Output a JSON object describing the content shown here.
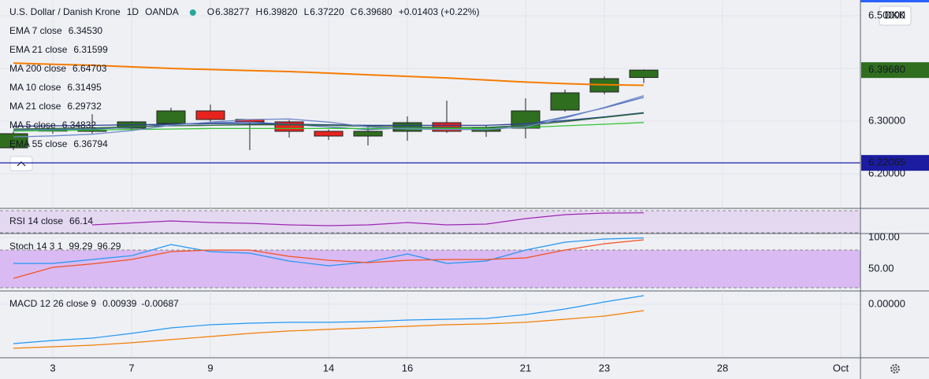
{
  "header": {
    "title": "U.S. Dollar / Danish Krone",
    "interval": "1D",
    "source": "OANDA",
    "ohlc": [
      {
        "key": "O",
        "label": "6.38277"
      },
      {
        "key": "H",
        "label": "6.39820"
      },
      {
        "key": "L",
        "label": "6.37220"
      },
      {
        "key": "C",
        "label": "6.39680"
      }
    ],
    "change": "+0.01403 (+0.22%)",
    "currency": "DKK"
  },
  "chart_data": [
    {
      "type": "candlestick",
      "xlim": [
        -0.34,
        21.5
      ],
      "xticks": [
        {
          "value": 1,
          "label": "3"
        },
        {
          "value": 3,
          "label": "7"
        },
        {
          "value": 5,
          "label": "9"
        },
        {
          "value": 8,
          "label": "14"
        },
        {
          "value": 10,
          "label": "16"
        },
        {
          "value": 13,
          "label": "21"
        },
        {
          "value": 15,
          "label": "23"
        },
        {
          "value": 18,
          "label": "28"
        },
        {
          "value": 21,
          "label": "Oct"
        }
      ],
      "ylim": [
        6.1343,
        6.5299
      ],
      "yticks": [
        {
          "value": 6.2,
          "label": "6.20000"
        },
        {
          "value": 6.3,
          "label": "6.30000"
        },
        {
          "value": 6.4,
          "label": "6.40000"
        },
        {
          "value": 6.5,
          "label": "6.50000"
        }
      ],
      "open": [
        6.2493,
        6.281,
        6.2806,
        6.2866,
        6.2955,
        6.3194,
        6.303,
        6.2985,
        6.2806,
        6.2716,
        6.2806,
        6.297,
        6.2806,
        6.2866,
        6.3209,
        6.3552,
        6.38277
      ],
      "high": [
        6.28,
        6.286,
        6.313,
        6.3,
        6.3254,
        6.3313,
        6.304,
        6.302,
        6.284,
        6.288,
        6.3089,
        6.3388,
        6.2925,
        6.3433,
        6.3597,
        6.3851,
        6.3982
      ],
      "low": [
        6.245,
        6.276,
        6.276,
        6.282,
        6.293,
        6.299,
        6.2448,
        6.2687,
        6.2642,
        6.2537,
        6.2627,
        6.2776,
        6.2702,
        6.2672,
        6.318,
        6.3507,
        6.3722
      ],
      "close": [
        6.2761,
        6.283,
        6.2836,
        6.2985,
        6.3194,
        6.303,
        6.2985,
        6.2806,
        6.2716,
        6.2806,
        6.297,
        6.2806,
        6.2881,
        6.3194,
        6.3537,
        6.3806,
        6.3968
      ],
      "up_color": "#2f6e1f",
      "down_color": "#e8231e",
      "series": [
        {
          "name": "EMA 7 close",
          "color": "#4a6bb5",
          "value_label": "6.34530",
          "values": [
            6.283,
            6.284,
            6.285,
            6.288,
            6.294,
            6.297,
            6.298,
            6.294,
            6.289,
            6.284,
            6.287,
            6.286,
            6.285,
            6.293,
            6.308,
            6.325,
            6.3453
          ]
        },
        {
          "name": "EMA 21 close",
          "color": "#2b3f8f",
          "value_label": "6.31599",
          "values": [
            6.29,
            6.291,
            6.292,
            6.293,
            6.294,
            6.295,
            6.295,
            6.294,
            6.293,
            6.292,
            6.292,
            6.292,
            6.292,
            6.295,
            6.301,
            6.308,
            6.31599
          ]
        },
        {
          "name": "MA 200 close",
          "color": "#e53935",
          "value_label": "6.64703"
        },
        {
          "name": "MA 10 close",
          "color": "#2d6b3a",
          "value_label": "6.31495",
          "values": [
            6.285,
            6.286,
            6.287,
            6.289,
            6.291,
            6.292,
            6.293,
            6.293,
            6.292,
            6.29,
            6.289,
            6.288,
            6.288,
            6.292,
            6.299,
            6.307,
            6.31495
          ]
        },
        {
          "name": "MA 21 close",
          "color": "#33c433",
          "value_label": "6.29732",
          "values": [
            6.281,
            6.282,
            6.283,
            6.284,
            6.285,
            6.286,
            6.286,
            6.286,
            6.286,
            6.286,
            6.286,
            6.286,
            6.286,
            6.288,
            6.291,
            6.294,
            6.29732
          ]
        },
        {
          "name": "MA 5 close",
          "color": "#7088c8",
          "value_label": "6.34832",
          "values": [
            6.27,
            6.272,
            6.275,
            6.282,
            6.292,
            6.298,
            6.303,
            6.304,
            6.298,
            6.289,
            6.285,
            6.284,
            6.284,
            6.289,
            6.306,
            6.326,
            6.34832
          ]
        },
        {
          "name": "EMA 55 close",
          "color": "#f57c00",
          "value_label": "6.36794",
          "values": [
            6.41,
            6.408,
            6.406,
            6.403,
            6.4,
            6.398,
            6.396,
            6.394,
            6.391,
            6.388,
            6.385,
            6.382,
            6.378,
            6.374,
            6.371,
            6.369,
            6.36794
          ]
        }
      ],
      "price_line": {
        "value": 6.22065,
        "label": "6.22065",
        "color": "#1c1ca0"
      },
      "last_price_label": "6.39680"
    },
    {
      "type": "line",
      "title": "RSI 14 close",
      "ylim": [
        28.6,
        74.3
      ],
      "bands": [
        30,
        70
      ],
      "band_fill": "#e4d8f1",
      "series": [
        {
          "color": "#9c27b0",
          "values": [
            null,
            null,
            44.3,
            47.9,
            51.4,
            48.6,
            47.1,
            44.3,
            42.9,
            44.3,
            48.6,
            44.3,
            45.7,
            55.7,
            62.9,
            65.7,
            66.14
          ]
        }
      ]
    },
    {
      "type": "line",
      "title": "Stoch 14 3 1",
      "ylim": [
        15,
        106.25
      ],
      "bands": [
        20,
        80
      ],
      "band_fill": "#d9baf3",
      "yticks": [
        {
          "value": 100,
          "label": "100.00"
        },
        {
          "value": 50,
          "label": "50.00"
        }
      ],
      "series": [
        {
          "color": "#2196f3",
          "values": [
            58.8,
            58.8,
            65,
            71,
            88.8,
            77.5,
            75,
            62.5,
            55,
            61,
            73.8,
            58.8,
            62.5,
            80,
            92.5,
            97.5,
            99.29
          ]
        },
        {
          "color": "#f4511e",
          "values": [
            35,
            52.5,
            58,
            65,
            77.5,
            80,
            80,
            70,
            63.8,
            60,
            63.8,
            65,
            65,
            67.5,
            80,
            90,
            96.29
          ]
        }
      ]
    },
    {
      "type": "line",
      "title": "MACD 12 26 close 9",
      "ylim": [
        -0.0581,
        0.01452
      ],
      "yticks": [
        {
          "value": 0,
          "label": "0.00000"
        }
      ],
      "series": [
        {
          "color": "#2196f3",
          "values": [
            -0.0427,
            -0.0393,
            -0.0367,
            -0.0316,
            -0.0256,
            -0.0222,
            -0.0205,
            -0.0196,
            -0.0196,
            -0.0188,
            -0.0171,
            -0.0162,
            -0.0154,
            -0.0111,
            -0.0051,
            0.0026,
            0.00939
          ]
        },
        {
          "color": "#f57c00",
          "values": [
            -0.0478,
            -0.0461,
            -0.0444,
            -0.0418,
            -0.0384,
            -0.035,
            -0.0316,
            -0.029,
            -0.0273,
            -0.0256,
            -0.0239,
            -0.0222,
            -0.0213,
            -0.0196,
            -0.0162,
            -0.0128,
            -0.00687
          ]
        }
      ]
    }
  ]
}
